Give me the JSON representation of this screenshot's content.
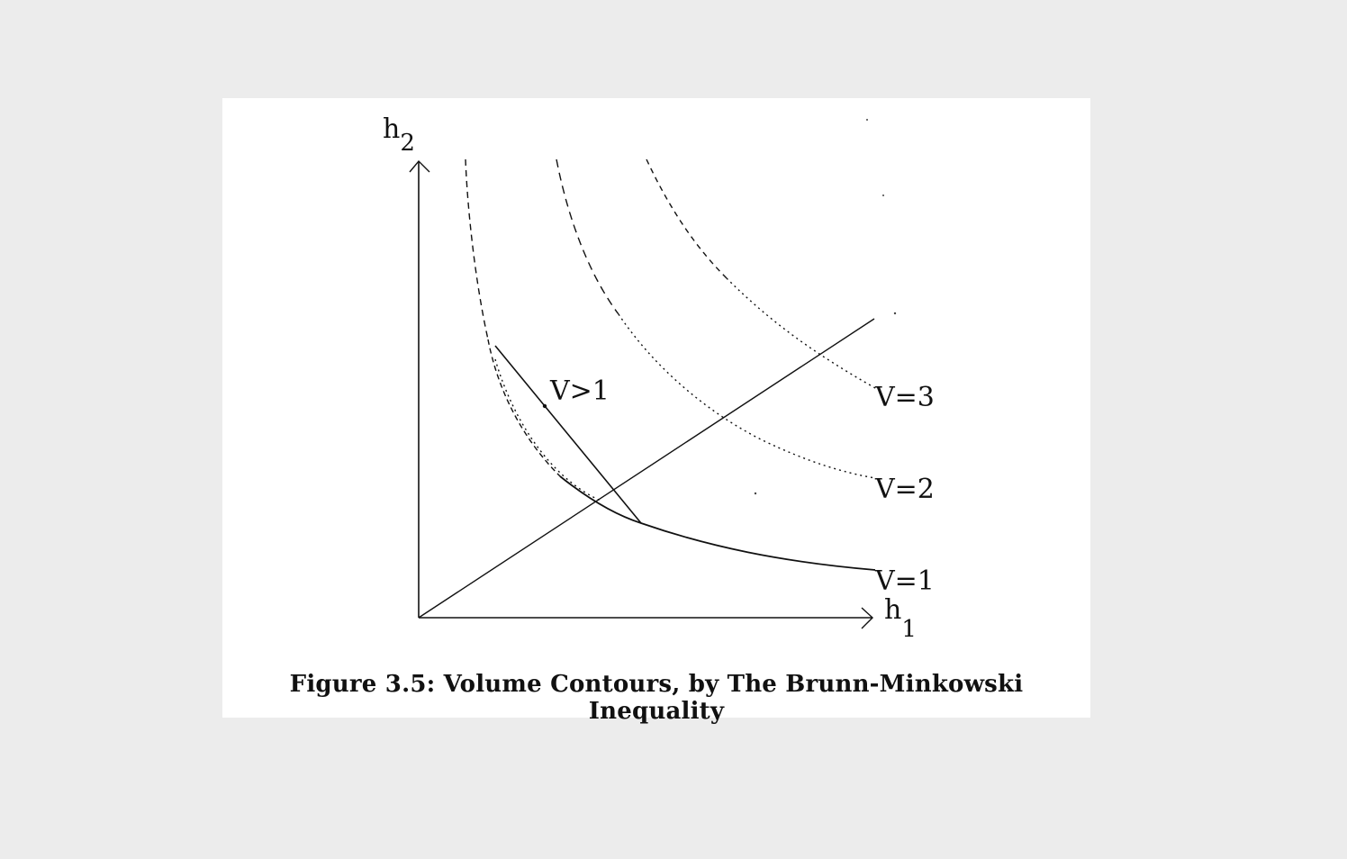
{
  "axes": {
    "y_label": "h",
    "y_sub": "2",
    "x_label": "h",
    "x_sub": "1"
  },
  "contours": [
    {
      "label": "V=1",
      "value": 1,
      "style": "solid-dashed"
    },
    {
      "label": "V=2",
      "value": 2,
      "style": "dashed-dotted"
    },
    {
      "label": "V=3",
      "value": 3,
      "style": "dashed-dotted"
    }
  ],
  "segment_label": "V>1",
  "caption": "Figure 3.5: Volume Contours, by The Brunn-Minkowski Inequality",
  "colors": {
    "ink": "#111111",
    "paper": "#ffffff",
    "background": "#ececec"
  }
}
